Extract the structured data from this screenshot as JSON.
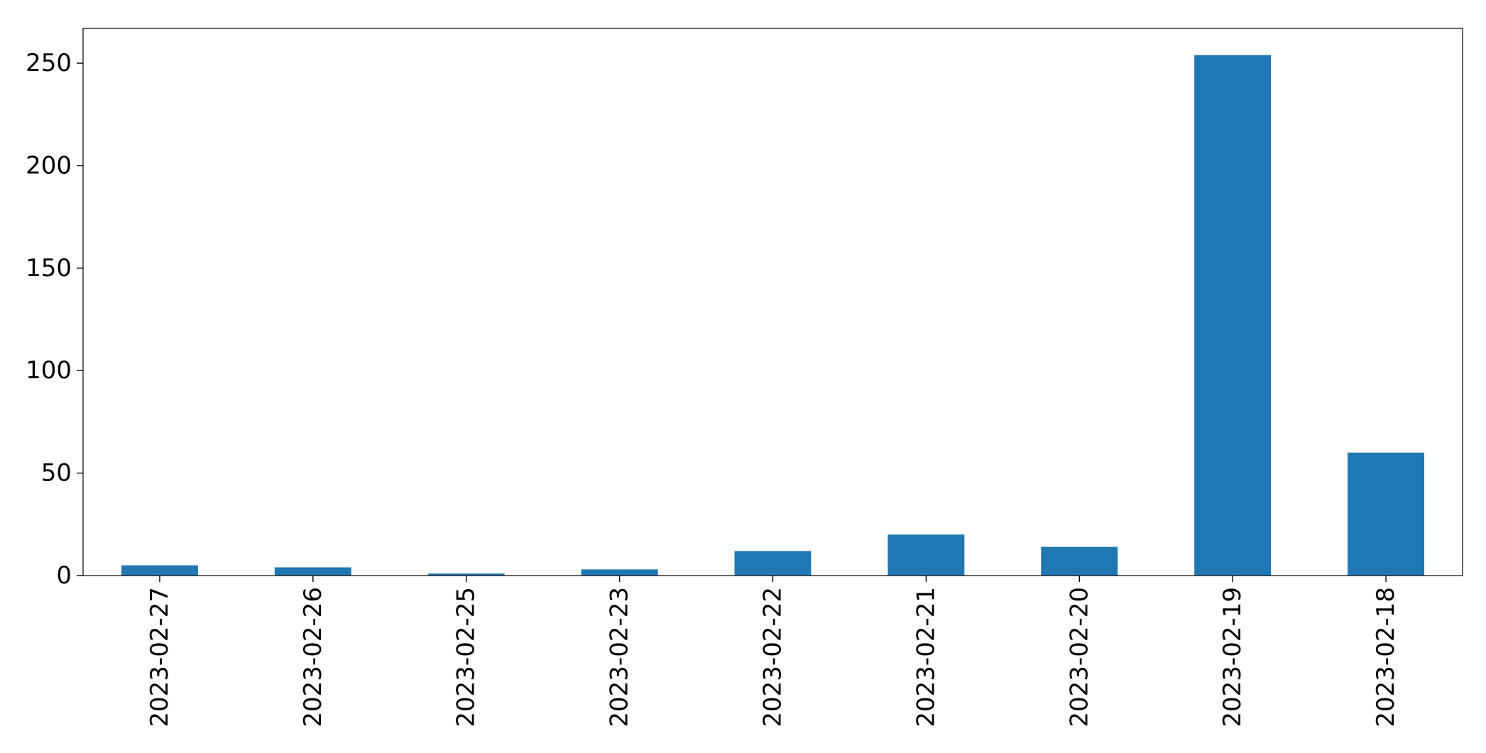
{
  "chart_data": {
    "type": "bar",
    "title": "",
    "xlabel": "",
    "ylabel": "",
    "categories": [
      "2023-02-27",
      "2023-02-26",
      "2023-02-25",
      "2023-02-23",
      "2023-02-22",
      "2023-02-21",
      "2023-02-20",
      "2023-02-19",
      "2023-02-18"
    ],
    "values": [
      5,
      4,
      1,
      3,
      12,
      20,
      14,
      254,
      60
    ],
    "ylim": [
      0,
      267
    ],
    "yticks": [
      0,
      50,
      100,
      150,
      200,
      250
    ],
    "grid": false,
    "legend": "none",
    "bar_color": "#1f77b4",
    "x_tick_rotation": "vertical"
  }
}
